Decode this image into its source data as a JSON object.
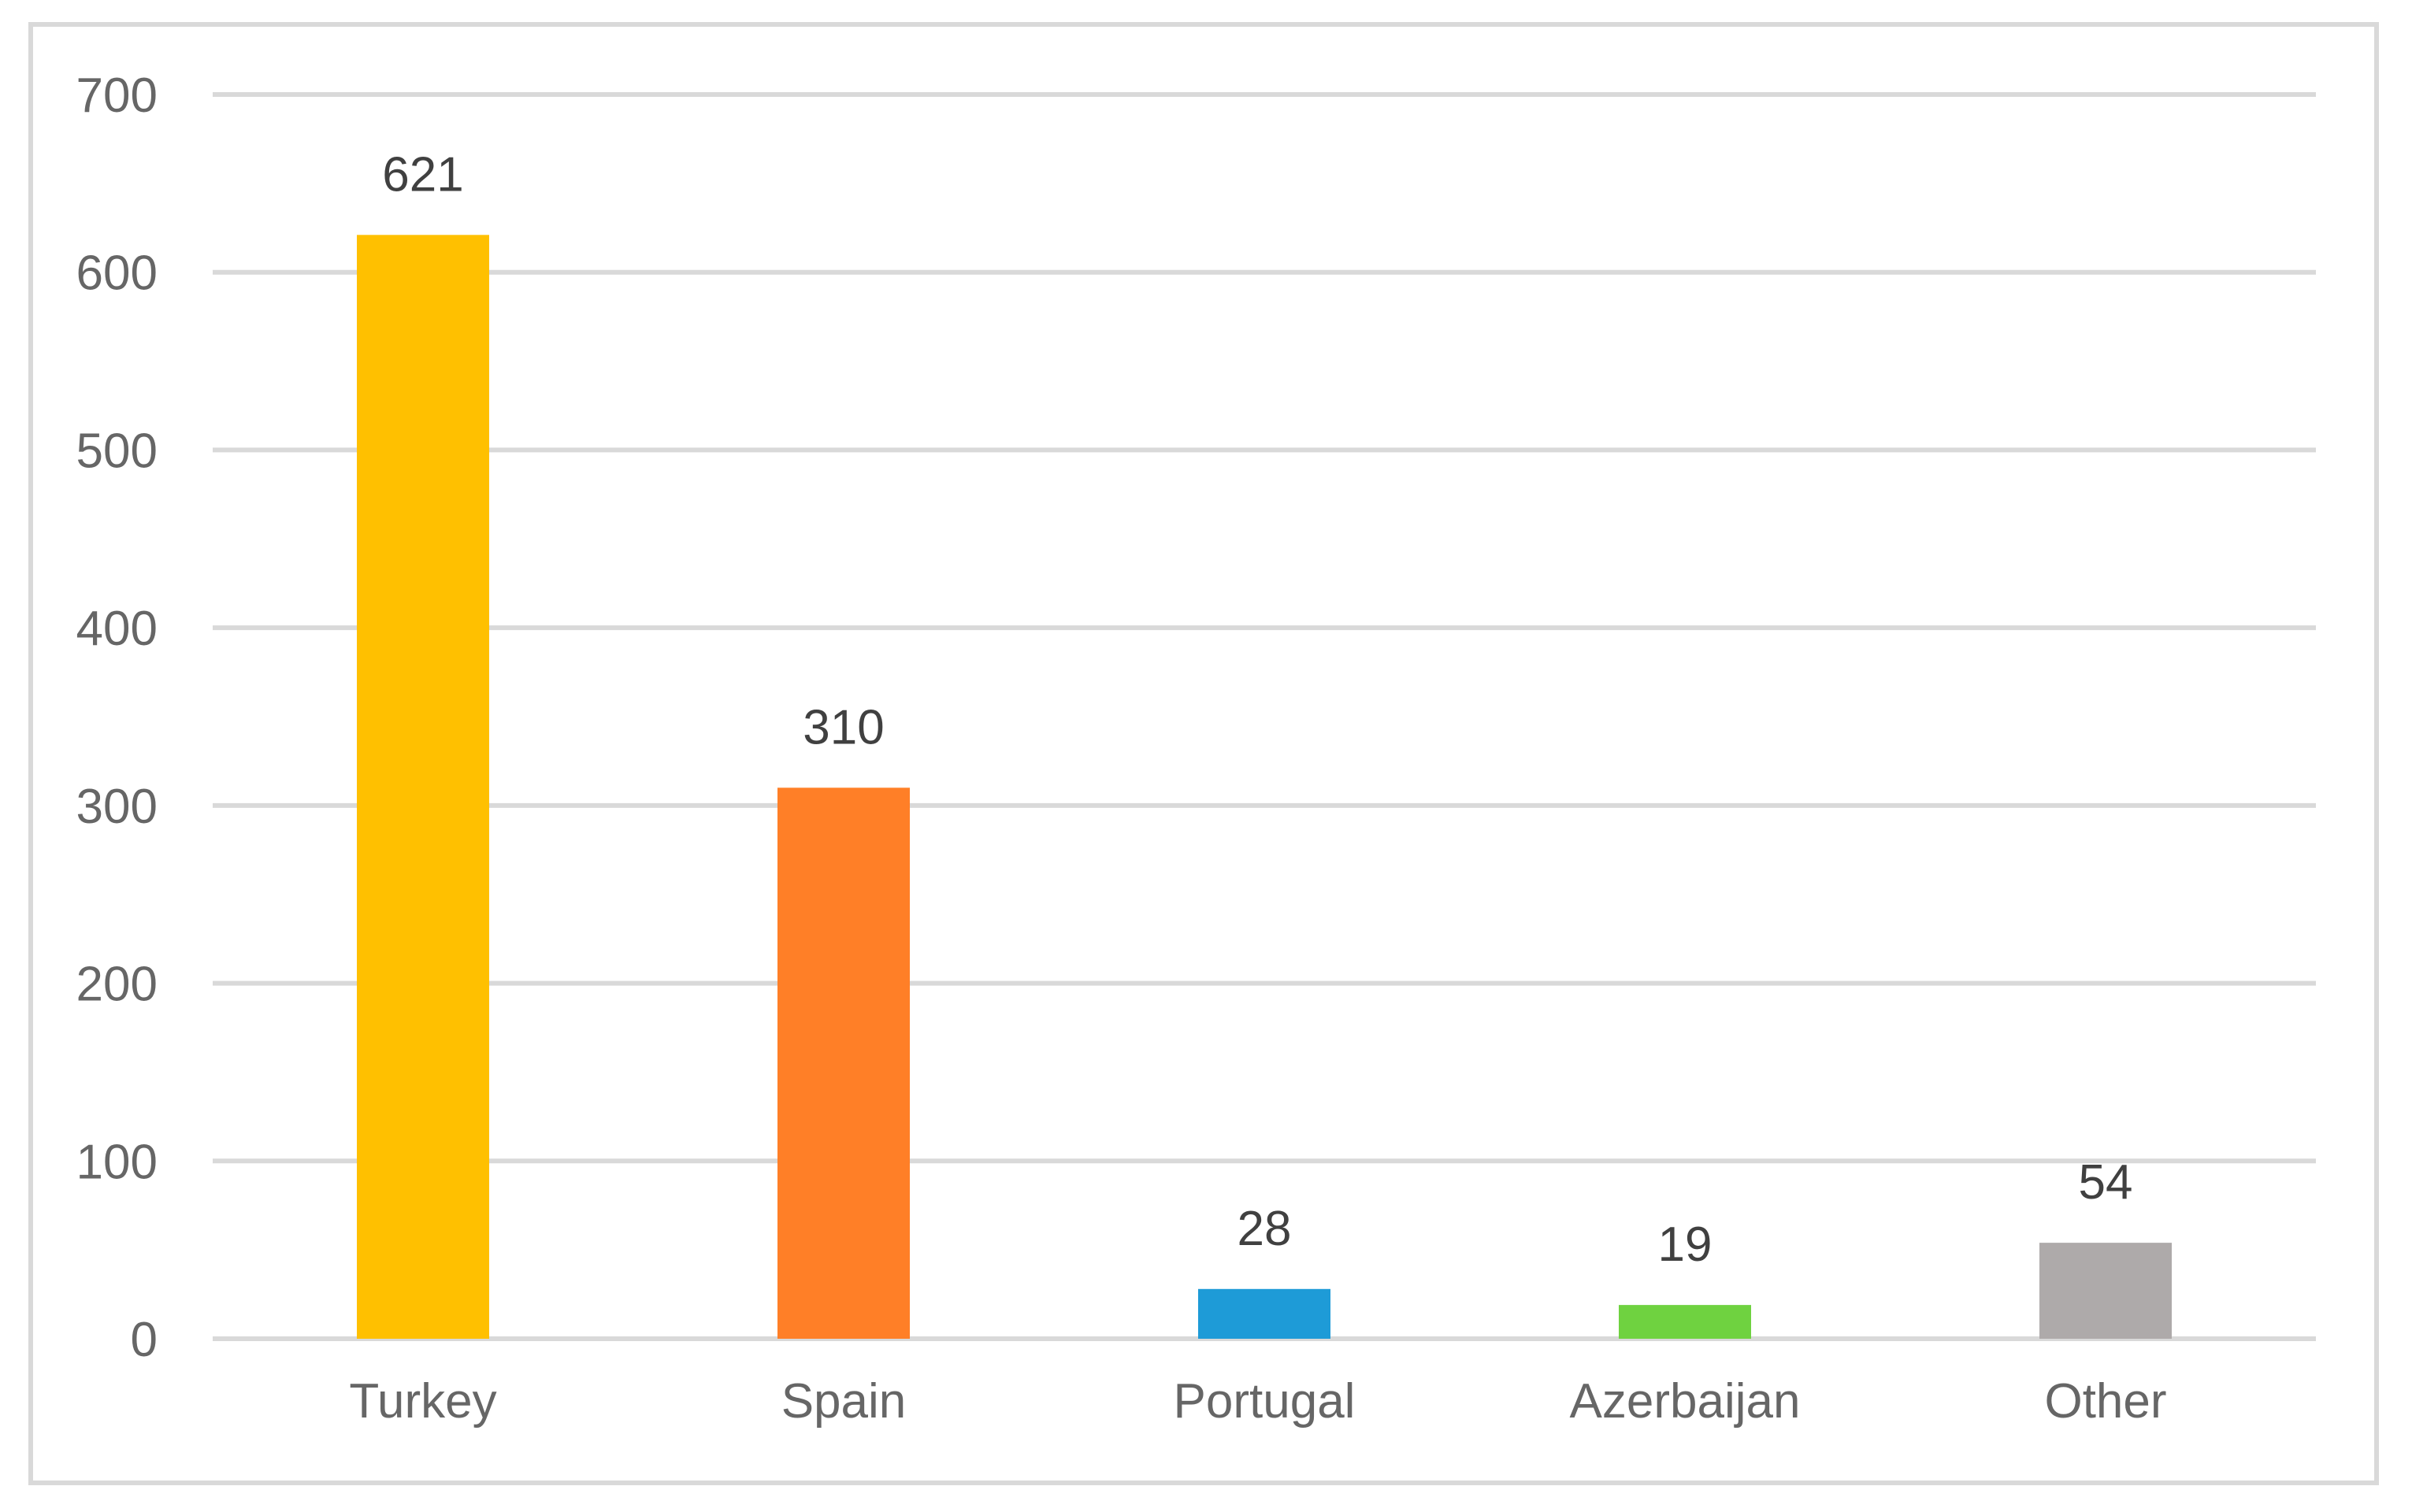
{
  "chart_data": {
    "type": "bar",
    "title": "",
    "xlabel": "",
    "ylabel": "",
    "categories": [
      "Turkey",
      "Spain",
      "Portugal",
      "Azerbaijan",
      "Other"
    ],
    "values": [
      621,
      310,
      28,
      19,
      54
    ],
    "data_labels": [
      "621",
      "310",
      "28",
      "19",
      "54"
    ],
    "colors": [
      "#ffc000",
      "#ff7f27",
      "#1e9bd7",
      "#6fd240",
      "#aeaaaa"
    ],
    "ylim": [
      0,
      700
    ],
    "yticks": [
      0,
      100,
      200,
      300,
      400,
      500,
      600,
      700
    ],
    "grid": true,
    "legend": "none"
  }
}
